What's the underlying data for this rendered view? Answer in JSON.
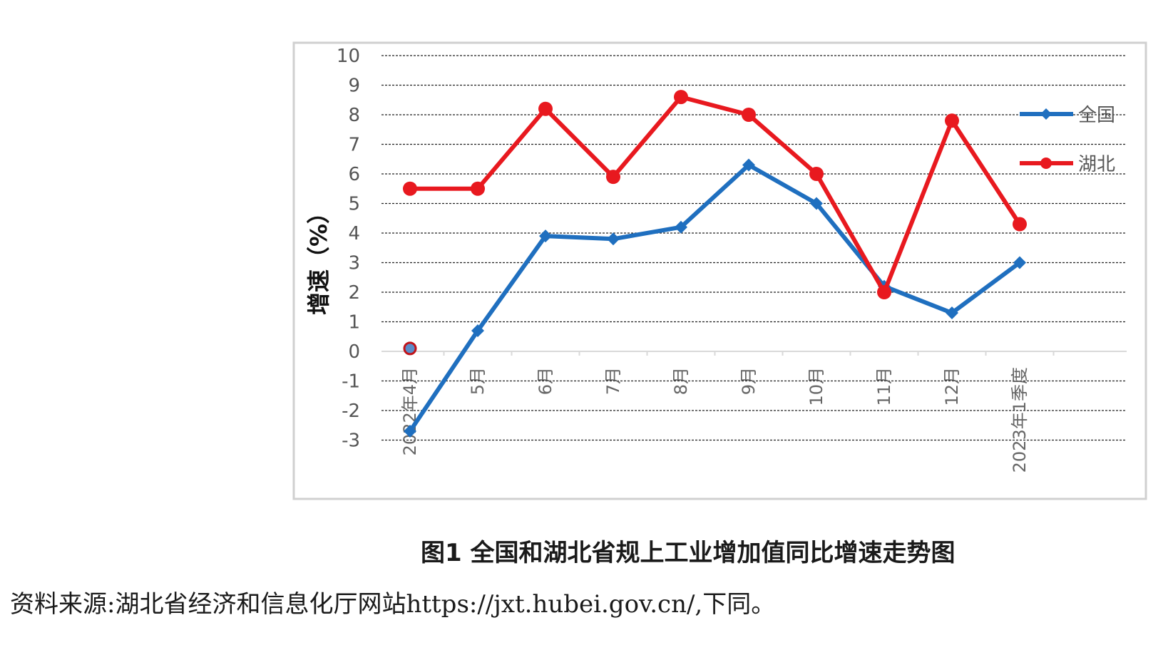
{
  "chart_data": {
    "type": "line",
    "ylabel": "增速（%）",
    "ylim": [
      -3,
      10
    ],
    "yticks": [
      10,
      9,
      8,
      7,
      6,
      5,
      4,
      3,
      2,
      1,
      0,
      -1,
      -2,
      -3
    ],
    "categories": [
      "2022年4月",
      "5月",
      "6月",
      "7月",
      "8月",
      "9月",
      "10月",
      "11月",
      "12月",
      "2023年1季度"
    ],
    "grid": true,
    "legend_position": "right",
    "series": [
      {
        "name": "全国",
        "color": "#1f6fbf",
        "marker": "diamond",
        "values": [
          -2.7,
          0.7,
          3.9,
          3.8,
          4.2,
          6.3,
          5.0,
          2.2,
          1.3,
          3.0
        ]
      },
      {
        "name": "湖北",
        "color": "#e8191f",
        "marker": "circle",
        "values": [
          5.5,
          5.5,
          8.2,
          5.9,
          8.6,
          8.0,
          6.0,
          2.0,
          7.8,
          4.3
        ]
      }
    ],
    "extra_point": {
      "category": "2022年4月",
      "value": 0.1,
      "color": "#5b8cc8",
      "edge": "#c0141a"
    }
  },
  "caption": "图1  全国和湖北省规上工业增加值同比增速走势图",
  "source": "资料来源:湖北省经济和信息化厅网站https://jxt.hubei.gov.cn/,下同。"
}
